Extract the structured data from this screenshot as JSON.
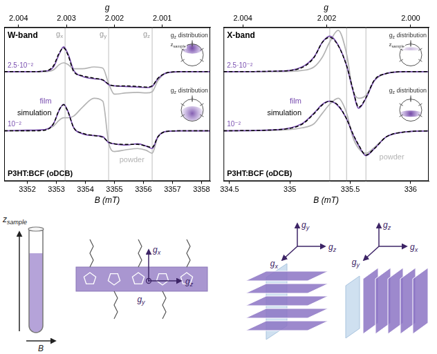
{
  "chart_data": [
    {
      "type": "line",
      "title": "W-band",
      "subtitle": "P3HT:BCF (oDCB)",
      "x_label": "B (mT)",
      "x2_label": "g",
      "xlim": [
        3351.2,
        3358.3
      ],
      "xticks": [
        3352,
        3353,
        3354,
        3355,
        3356,
        3357,
        3358
      ],
      "x2lim": [
        2.0043,
        2.0
      ],
      "x2ticks": [
        2.004,
        2.003,
        2.002,
        2.001
      ],
      "ylim": [
        -0.85,
        1.75
      ],
      "yticks": [],
      "tick_labels": "x",
      "grid": false,
      "reference_lines": [
        {
          "value": 3353.3,
          "label": "gx"
        },
        {
          "value": 3354.8,
          "label": "gy"
        },
        {
          "value": 3356.3,
          "label": "gz"
        }
      ],
      "x": [
        3351.2,
        3352.0,
        3352.6,
        3352.9,
        3353.1,
        3353.25,
        3353.4,
        3353.6,
        3353.9,
        3354.3,
        3354.6,
        3354.8,
        3355.0,
        3355.4,
        3355.8,
        3356.1,
        3356.3,
        3356.5,
        3356.8,
        3357.3,
        3358.3
      ],
      "traces": [
        {
          "offset_label": "2.5·10⁻²",
          "inset_label": "gz distribution",
          "inset_axis_label": "zsample",
          "series": [
            {
              "name": "powder",
              "color": "#b4b4b4",
              "line_style": "solid",
              "values": [
                1.0,
                1.0,
                1.0,
                1.03,
                1.12,
                1.15,
                1.12,
                1.05,
                1.05,
                1.08,
                1.06,
                0.8,
                0.62,
                0.64,
                0.65,
                0.64,
                0.66,
                0.85,
                0.98,
                1.0,
                1.0
              ]
            },
            {
              "name": "film",
              "color": "#7a4fb0",
              "line_style": "solid",
              "values": [
                1.0,
                1.0,
                1.01,
                1.08,
                1.3,
                1.42,
                1.3,
                1.02,
                0.92,
                0.88,
                0.86,
                0.78,
                0.76,
                0.75,
                0.74,
                0.73,
                0.75,
                0.88,
                0.98,
                1.0,
                1.0
              ]
            },
            {
              "name": "simulation",
              "color": "#000000",
              "line_style": "dashed",
              "values": [
                1.0,
                1.0,
                1.01,
                1.1,
                1.32,
                1.4,
                1.28,
                1.0,
                0.93,
                0.89,
                0.86,
                0.79,
                0.76,
                0.76,
                0.75,
                0.74,
                0.76,
                0.89,
                0.98,
                1.0,
                1.0
              ]
            }
          ]
        },
        {
          "offset_label": "10⁻²",
          "inset_label": "gz distribution",
          "series": [
            {
              "name": "powder",
              "color": "#b4b4b4",
              "line_style": "solid",
              "values": [
                0.0,
                0.0,
                0.02,
                0.08,
                0.18,
                0.22,
                0.22,
                0.25,
                0.4,
                0.55,
                0.5,
                -0.2,
                -0.35,
                -0.32,
                -0.3,
                -0.33,
                -0.38,
                -0.1,
                -0.01,
                0.0,
                0.0
              ]
            },
            {
              "name": "film",
              "color": "#7a4fb0",
              "line_style": "solid",
              "values": [
                0.0,
                0.01,
                0.02,
                0.12,
                0.35,
                0.45,
                0.33,
                0.05,
                -0.05,
                -0.08,
                -0.1,
                -0.2,
                -0.22,
                -0.24,
                -0.22,
                -0.26,
                -0.3,
                -0.1,
                -0.01,
                0.0,
                0.0
              ]
            },
            {
              "name": "simulation",
              "color": "#000000",
              "line_style": "dashed",
              "values": [
                0.0,
                0.0,
                0.01,
                0.12,
                0.36,
                0.44,
                0.32,
                0.05,
                -0.04,
                -0.08,
                -0.11,
                -0.19,
                -0.22,
                -0.23,
                -0.23,
                -0.26,
                -0.28,
                -0.1,
                -0.01,
                0.0,
                0.0
              ]
            }
          ]
        }
      ]
    },
    {
      "type": "line",
      "title": "X-band",
      "subtitle": "P3HT:BCF (oDCB)",
      "x_label": "B (mT)",
      "x2_label": "g",
      "xlim": [
        334.45,
        336.15
      ],
      "xticks": [
        334.5,
        335,
        335.5,
        336
      ],
      "x2lim": [
        2.00446,
        1.99957
      ],
      "x2ticks": [
        2.004,
        2.002,
        {
          "value": 2,
          "label": "2.000"
        }
      ],
      "ylim": [
        -0.85,
        1.75
      ],
      "yticks": [],
      "tick_labels": "x",
      "grid": false,
      "reference_lines": [
        {
          "value": 335.33
        },
        {
          "value": 335.47
        },
        {
          "value": 335.63
        }
      ],
      "x": [
        334.45,
        334.9,
        335.1,
        335.2,
        335.27,
        335.33,
        335.4,
        335.47,
        335.52,
        335.57,
        335.63,
        335.7,
        335.8,
        335.95,
        336.15
      ],
      "traces": [
        {
          "offset_label": "2.5·10⁻²",
          "inset_label": "gz distribution",
          "inset_axis_label": "zsample",
          "series": [
            {
              "name": "powder",
              "color": "#b4b4b4",
              "line_style": "solid",
              "values": [
                1.0,
                1.0,
                1.02,
                1.08,
                1.25,
                1.5,
                1.7,
                1.3,
                0.7,
                0.55,
                0.6,
                0.85,
                0.97,
                1.0,
                1.0
              ]
            },
            {
              "name": "film",
              "color": "#7a4fb0",
              "line_style": "solid",
              "values": [
                1.0,
                1.01,
                1.08,
                1.25,
                1.5,
                1.6,
                1.45,
                1.1,
                0.7,
                0.38,
                0.55,
                0.85,
                0.97,
                1.0,
                1.0
              ]
            },
            {
              "name": "simulation",
              "color": "#000000",
              "line_style": "dashed",
              "values": [
                1.0,
                1.01,
                1.07,
                1.24,
                1.5,
                1.58,
                1.44,
                1.1,
                0.72,
                0.4,
                0.56,
                0.86,
                0.97,
                1.0,
                1.0
              ]
            }
          ]
        },
        {
          "offset_label": "10⁻²",
          "inset_label": "gz distribution",
          "series": [
            {
              "name": "powder",
              "color": "#b4b4b4",
              "line_style": "solid",
              "values": [
                0.0,
                0.01,
                0.05,
                0.12,
                0.3,
                0.45,
                0.55,
                0.3,
                -0.1,
                -0.3,
                -0.38,
                -0.28,
                -0.1,
                -0.02,
                0.0
              ]
            },
            {
              "name": "film",
              "color": "#7a4fb0",
              "line_style": "solid",
              "values": [
                0.0,
                0.02,
                0.12,
                0.3,
                0.45,
                0.5,
                0.42,
                0.2,
                -0.05,
                -0.25,
                -0.42,
                -0.3,
                -0.1,
                -0.02,
                0.0
              ]
            },
            {
              "name": "simulation",
              "color": "#000000",
              "line_style": "dashed",
              "values": [
                0.0,
                0.02,
                0.11,
                0.29,
                0.44,
                0.5,
                0.43,
                0.2,
                -0.04,
                -0.24,
                -0.41,
                -0.3,
                -0.1,
                -0.02,
                0.0
              ]
            }
          ]
        }
      ]
    }
  ],
  "diagram": {
    "sample": {
      "axis_label": "zsample",
      "field_label": "B"
    },
    "chain": {
      "up": "gx",
      "dot": "gy",
      "right": "gz"
    },
    "lying_stack": {
      "up": "gy",
      "diagonal": "gx",
      "right": "gz"
    },
    "standing_stack": {
      "up": "gz",
      "diagonal": "gy",
      "right": "gx"
    }
  }
}
